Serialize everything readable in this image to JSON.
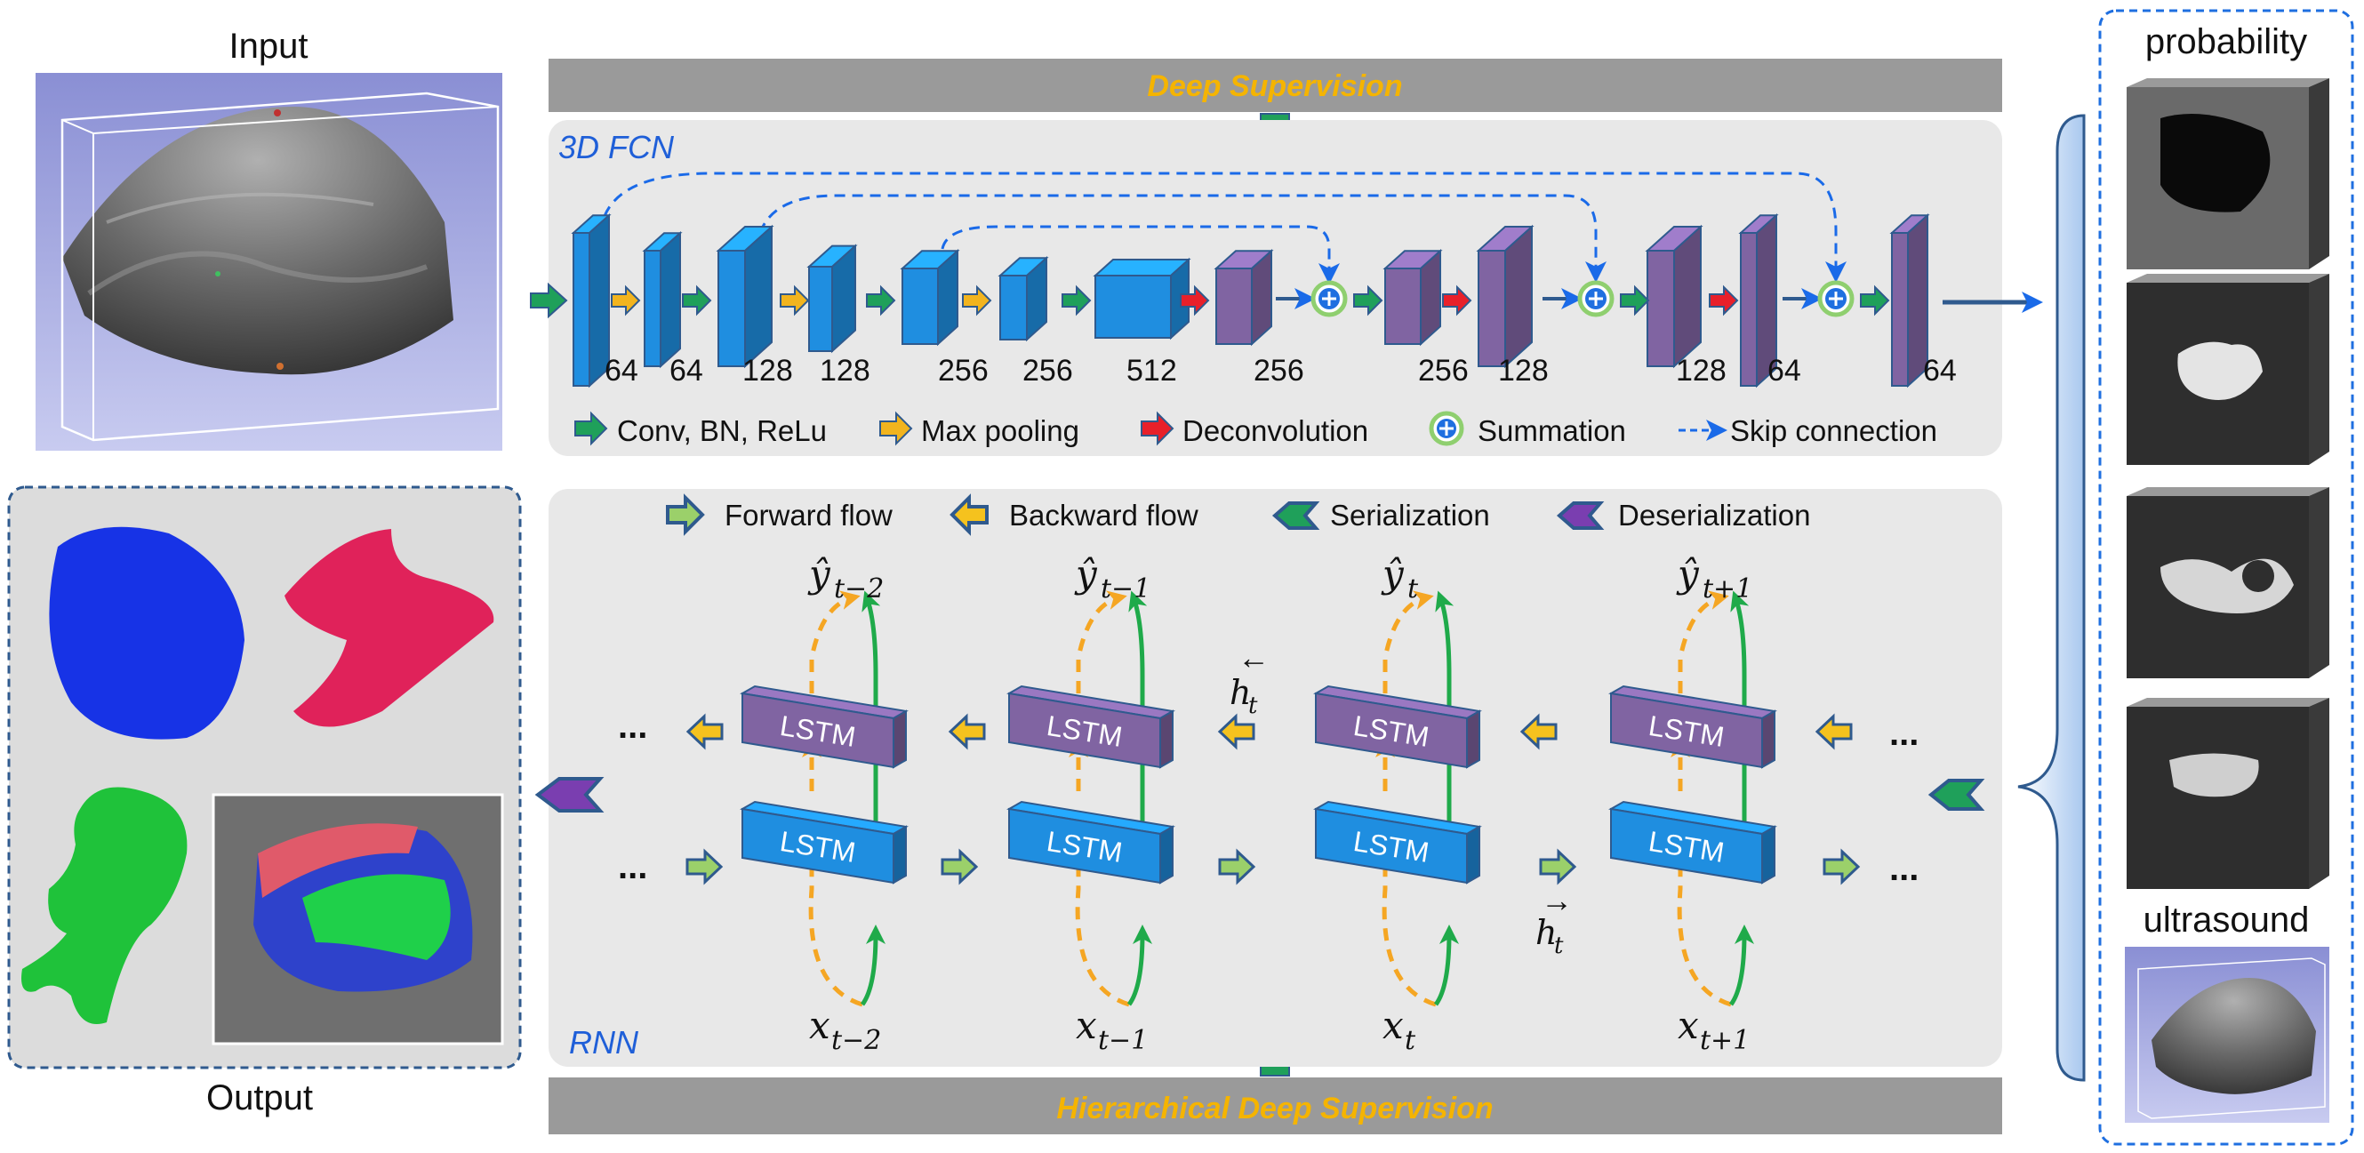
{
  "panels": {
    "input_label": "Input",
    "output_label": "Output",
    "probability_label": "probability",
    "ultrasound_label": "ultrasound"
  },
  "supervision": {
    "top": "Deep Supervision",
    "bottom": "Hierarchical Deep Supervision"
  },
  "fcn": {
    "title": "3D FCN",
    "channels": [
      "64",
      "64",
      "128",
      "128",
      "256",
      "256",
      "512",
      "256",
      "256",
      "128",
      "128",
      "64",
      "64"
    ]
  },
  "legend_fcn": {
    "conv": "Conv, BN, ReLu",
    "pool": "Max pooling",
    "deconv": "Deconvolution",
    "sum": "Summation",
    "skip": "Skip connection"
  },
  "rnn": {
    "title": "RNN",
    "lstm_label": "LSTM",
    "ellipsis": "...",
    "outputs": [
      "t−2",
      "t−1",
      "t",
      "t+1"
    ],
    "inputs": [
      "t−2",
      "t−1",
      "t",
      "t+1"
    ],
    "y_symbol": "ŷ",
    "x_symbol": "x",
    "h_back": "h",
    "h_back_sub": "t",
    "h_fwd": "h",
    "h_fwd_sub": "t"
  },
  "legend_rnn": {
    "forward": "Forward flow",
    "backward": "Backward flow",
    "serialization": "Serialization",
    "deserialization": "Deserialization"
  },
  "colors": {
    "fcn_blue": "#1f8ee0",
    "fcn_purple": "#8064a2",
    "conv_green": "#1fa05a",
    "pool_yellow": "#f2b41e",
    "deconv_red": "#e8202a",
    "skip_blue": "#1a6ae8",
    "supervision_text": "#f5b400",
    "title_blue": "#1f5fd8"
  }
}
